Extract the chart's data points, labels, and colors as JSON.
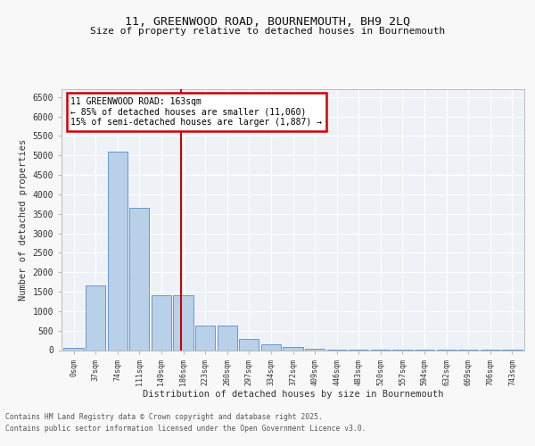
{
  "title_line1": "11, GREENWOOD ROAD, BOURNEMOUTH, BH9 2LQ",
  "title_line2": "Size of property relative to detached houses in Bournemouth",
  "xlabel": "Distribution of detached houses by size in Bournemouth",
  "ylabel": "Number of detached properties",
  "bin_labels": [
    "0sqm",
    "37sqm",
    "74sqm",
    "111sqm",
    "149sqm",
    "186sqm",
    "223sqm",
    "260sqm",
    "297sqm",
    "334sqm",
    "372sqm",
    "409sqm",
    "446sqm",
    "483sqm",
    "520sqm",
    "557sqm",
    "594sqm",
    "632sqm",
    "669sqm",
    "706sqm",
    "743sqm"
  ],
  "bar_values": [
    60,
    1650,
    5100,
    3650,
    1420,
    1420,
    620,
    620,
    280,
    150,
    80,
    40,
    20,
    15,
    10,
    7,
    5,
    4,
    3,
    2,
    2
  ],
  "bar_color": "#b8d0e8",
  "bar_edge_color": "#6699cc",
  "annotation_text": "11 GREENWOOD ROAD: 163sqm\n← 85% of detached houses are smaller (11,060)\n15% of semi-detached houses are larger (1,887) →",
  "annotation_box_color": "#ffffff",
  "annotation_border_color": "#cc0000",
  "vline_color": "#cc0000",
  "ylim": [
    0,
    6700
  ],
  "yticks": [
    0,
    500,
    1000,
    1500,
    2000,
    2500,
    3000,
    3500,
    4000,
    4500,
    5000,
    5500,
    6000,
    6500
  ],
  "background_color": "#eef2f7",
  "grid_color": "#ffffff",
  "footer_line1": "Contains HM Land Registry data © Crown copyright and database right 2025.",
  "footer_line2": "Contains public sector information licensed under the Open Government Licence v3.0.",
  "fig_width": 6.0,
  "fig_height": 5.0,
  "fig_dpi": 100
}
